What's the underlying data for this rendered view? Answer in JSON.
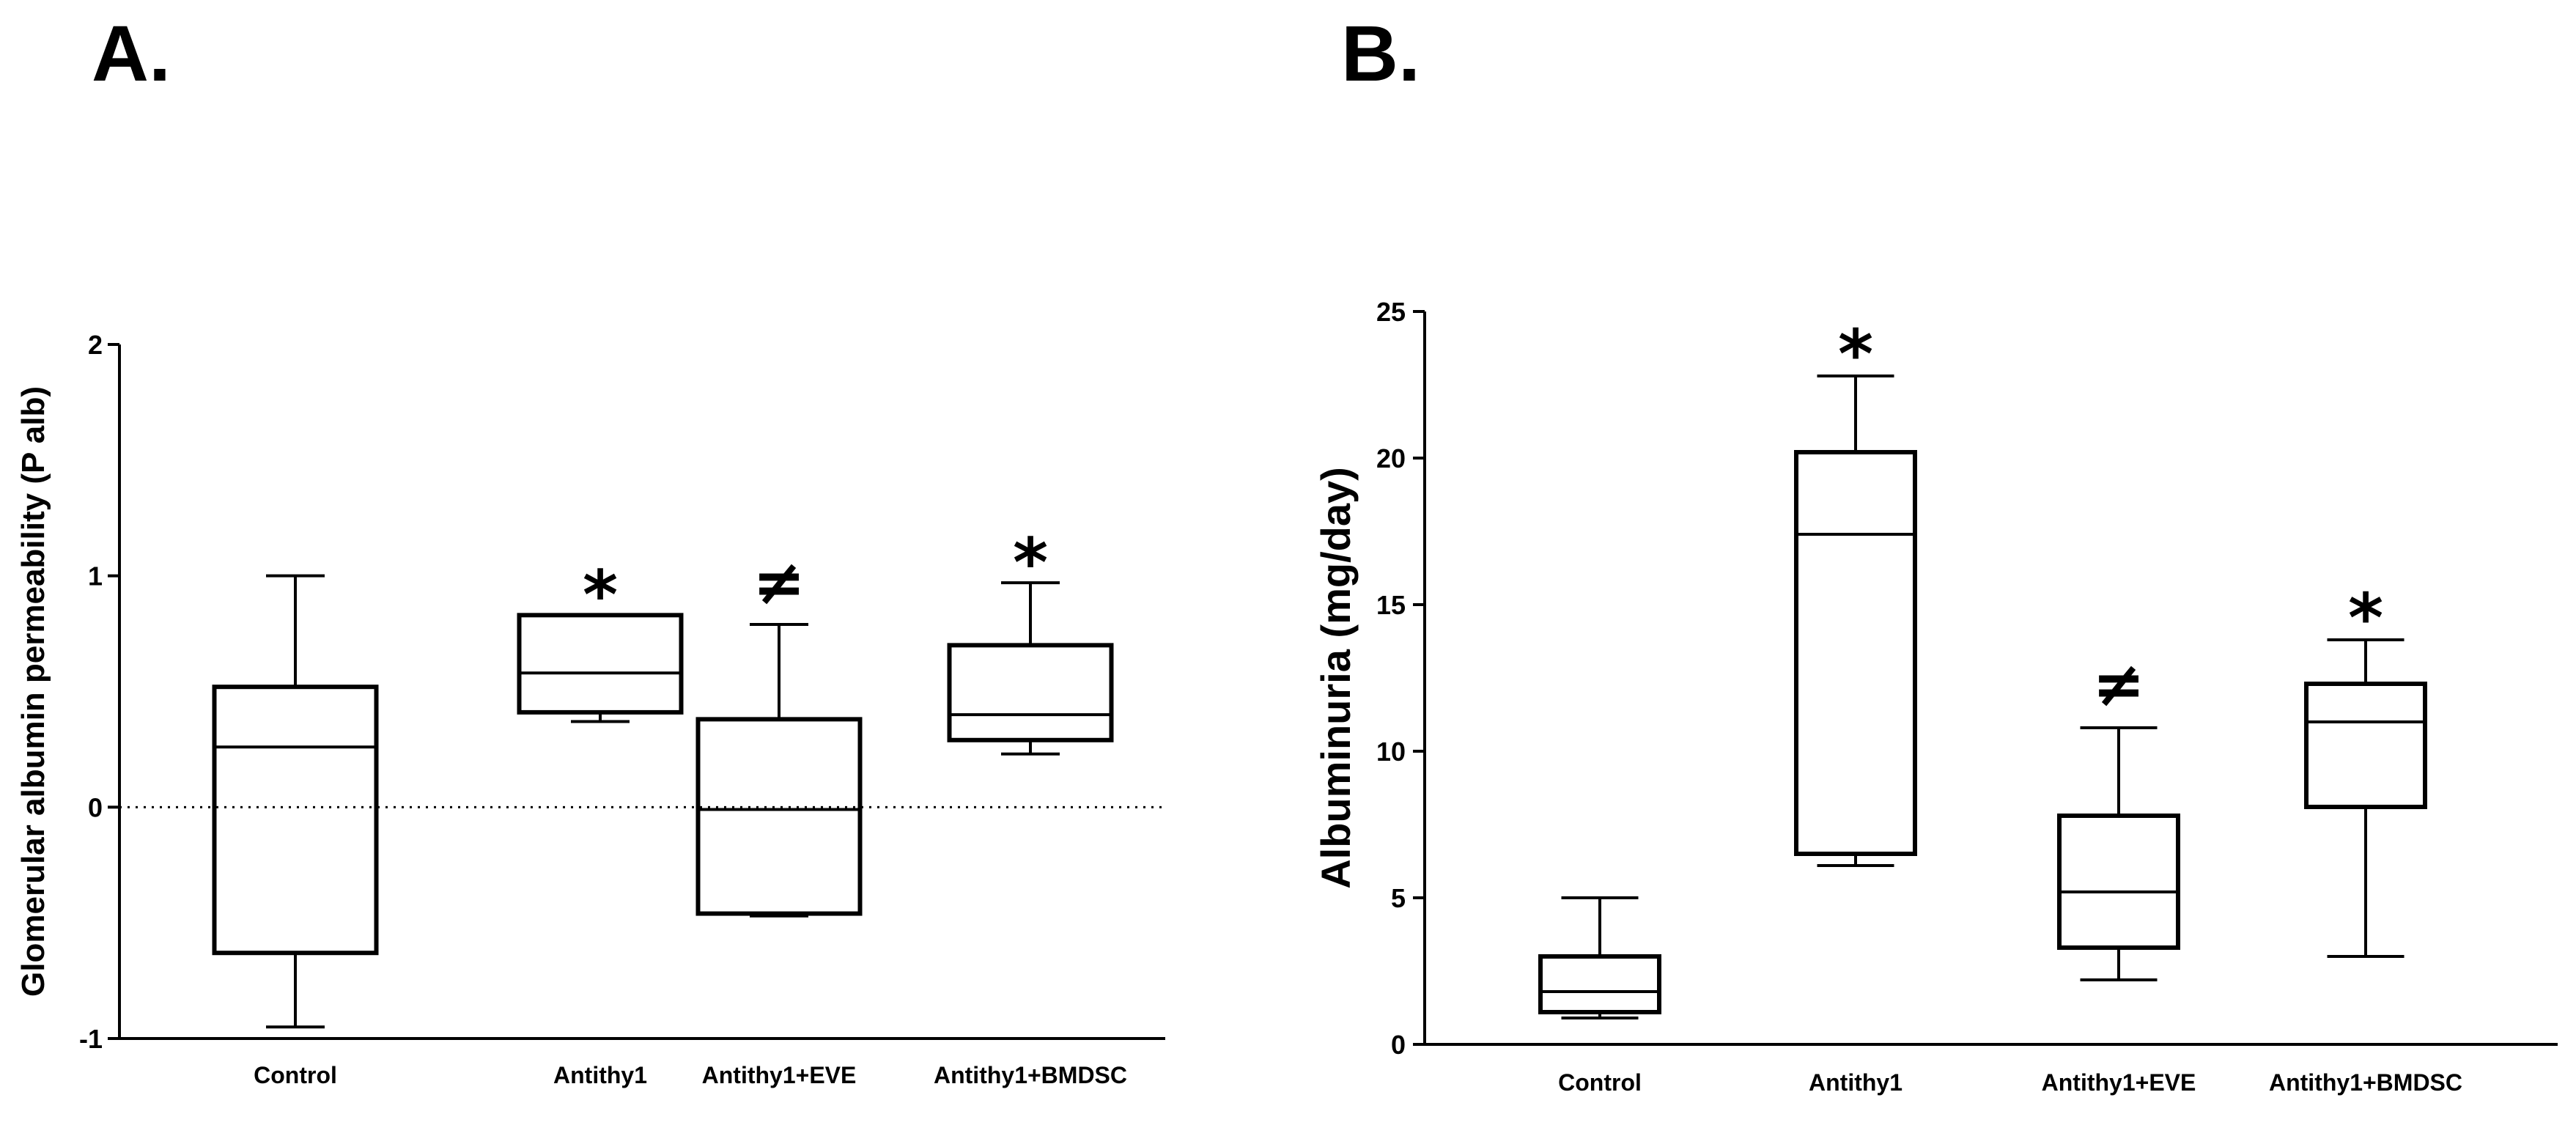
{
  "colors": {
    "ink": "#000000",
    "background": "#ffffff"
  },
  "chart_data": [
    {
      "type": "box",
      "panel_label": "A.",
      "title": "",
      "xlabel": "",
      "ylabel": "Glomerular albumin permeability (P alb)",
      "ylim": [
        -1,
        2
      ],
      "yticks": [
        "2",
        "1",
        "0",
        "-1"
      ],
      "reference_line": {
        "y": 0,
        "style": "dotted"
      },
      "categories": [
        "Control",
        "Antithy1",
        "Antithy1+EVE",
        "Antithy1+BMDSC"
      ],
      "boxes": [
        {
          "category": "Control",
          "min": -0.95,
          "q1": -0.63,
          "median": 0.26,
          "q3": 0.52,
          "max": 1.0,
          "annotation": ""
        },
        {
          "category": "Antithy1",
          "min": 0.37,
          "q1": 0.41,
          "median": 0.58,
          "q3": 0.83,
          "max": 0.83,
          "annotation": "*"
        },
        {
          "category": "Antithy1+EVE",
          "min": -0.47,
          "q1": -0.46,
          "median": -0.01,
          "q3": 0.38,
          "max": 0.79,
          "annotation": "≠"
        },
        {
          "category": "Antithy1+BMDSC",
          "min": 0.23,
          "q1": 0.29,
          "median": 0.4,
          "q3": 0.7,
          "max": 0.97,
          "annotation": "*"
        }
      ]
    },
    {
      "type": "box",
      "panel_label": "B.",
      "title": "",
      "xlabel": "",
      "ylabel": "Albuminuria (mg/day)",
      "ylim": [
        0,
        25
      ],
      "yticks": [
        "25",
        "20",
        "15",
        "10",
        "5",
        "0"
      ],
      "categories": [
        "Control",
        "Antithy1",
        "Antithy1+EVE",
        "Antithy1+BMDSC"
      ],
      "boxes": [
        {
          "category": "Control",
          "min": 0.9,
          "q1": 1.1,
          "median": 1.8,
          "q3": 3.0,
          "max": 5.0,
          "annotation": ""
        },
        {
          "category": "Antithy1",
          "min": 6.1,
          "q1": 6.5,
          "median": 17.4,
          "q3": 20.2,
          "max": 22.8,
          "annotation": "*"
        },
        {
          "category": "Antithy1+EVE",
          "min": 2.2,
          "q1": 3.3,
          "median": 5.2,
          "q3": 7.8,
          "max": 10.8,
          "annotation": "≠"
        },
        {
          "category": "Antithy1+BMDSC",
          "min": 3.0,
          "q1": 8.1,
          "median": 11.0,
          "q3": 12.3,
          "max": 13.8,
          "annotation": "*"
        }
      ]
    }
  ]
}
